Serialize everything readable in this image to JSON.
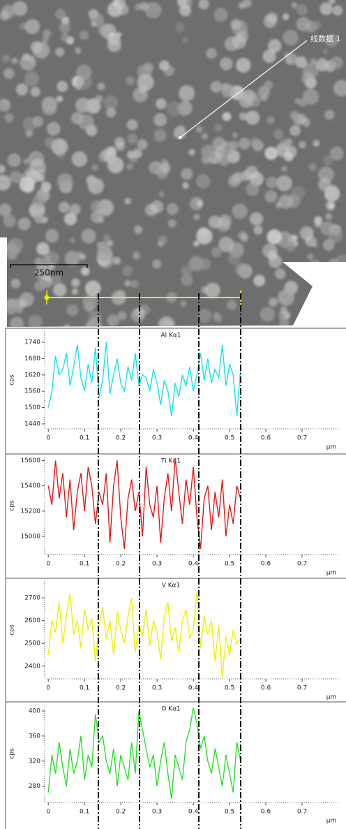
{
  "image": {
    "line_label": "线数据 1",
    "scale_bar": "250nm"
  },
  "chart_data": [
    {
      "type": "line",
      "title": "Al Kα1",
      "ylabel": "cps",
      "xlabel": "μm",
      "color": "#14e4f0",
      "x": [
        0,
        0.01,
        0.02,
        0.03,
        0.04,
        0.05,
        0.06,
        0.07,
        0.08,
        0.09,
        0.1,
        0.11,
        0.12,
        0.13,
        0.14,
        0.15,
        0.16,
        0.17,
        0.18,
        0.19,
        0.2,
        0.21,
        0.22,
        0.23,
        0.24,
        0.25,
        0.26,
        0.27,
        0.28,
        0.29,
        0.3,
        0.31,
        0.32,
        0.33,
        0.34,
        0.35,
        0.36,
        0.37,
        0.38,
        0.39,
        0.4,
        0.41,
        0.42,
        0.43,
        0.44,
        0.45,
        0.46,
        0.47,
        0.48,
        0.49,
        0.5,
        0.51,
        0.52,
        0.53
      ],
      "values": [
        1500,
        1560,
        1690,
        1620,
        1640,
        1700,
        1580,
        1650,
        1730,
        1610,
        1560,
        1660,
        1590,
        1720,
        1540,
        1600,
        1740,
        1550,
        1620,
        1680,
        1590,
        1560,
        1650,
        1600,
        1700,
        1580,
        1620,
        1610,
        1560,
        1640,
        1590,
        1510,
        1600,
        1560,
        1470,
        1590,
        1540,
        1620,
        1580,
        1650,
        1560,
        1620,
        1700,
        1600,
        1680,
        1590,
        1640,
        1610,
        1730,
        1580,
        1660,
        1620,
        1470,
        1640
      ],
      "xlim": [
        -0.01,
        0.8
      ],
      "xticks": [
        0,
        0.1,
        0.2,
        0.3,
        0.4,
        0.5,
        0.6,
        0.7
      ],
      "ylim": [
        1422,
        1781
      ],
      "yticks": [
        1440,
        1500,
        1560,
        1620,
        1680,
        1740
      ]
    },
    {
      "type": "line",
      "title": "Ti Kα1",
      "ylabel": "cps",
      "xlabel": "μm",
      "color": "#e01818",
      "x": [
        0,
        0.01,
        0.02,
        0.03,
        0.04,
        0.05,
        0.06,
        0.07,
        0.08,
        0.09,
        0.1,
        0.11,
        0.12,
        0.13,
        0.14,
        0.15,
        0.16,
        0.17,
        0.18,
        0.19,
        0.2,
        0.21,
        0.22,
        0.23,
        0.24,
        0.25,
        0.26,
        0.27,
        0.28,
        0.29,
        0.3,
        0.31,
        0.32,
        0.33,
        0.34,
        0.35,
        0.36,
        0.37,
        0.38,
        0.39,
        0.4,
        0.41,
        0.42,
        0.43,
        0.44,
        0.45,
        0.46,
        0.47,
        0.48,
        0.49,
        0.5,
        0.51,
        0.52,
        0.53
      ],
      "values": [
        15400,
        15250,
        15600,
        15300,
        15500,
        15150,
        15450,
        15050,
        15350,
        15500,
        15200,
        15550,
        15400,
        15100,
        15350,
        15250,
        15500,
        14950,
        15400,
        15600,
        15150,
        14900,
        15300,
        15450,
        15200,
        15350,
        15000,
        15550,
        15250,
        15150,
        15400,
        14950,
        15300,
        15500,
        15200,
        15620,
        15350,
        15100,
        15450,
        15250,
        15550,
        15150,
        14900,
        15300,
        15400,
        15050,
        15350,
        15150,
        15450,
        15000,
        15250,
        15100,
        15400,
        15300
      ],
      "xlim": [
        -0.01,
        0.8
      ],
      "xticks": [
        0,
        0.1,
        0.2,
        0.3,
        0.4,
        0.5,
        0.6,
        0.7
      ],
      "ylim": [
        14856,
        15630
      ],
      "yticks": [
        15000,
        15200,
        15400,
        15600
      ]
    },
    {
      "type": "line",
      "title": "V Kα1",
      "ylabel": "cps",
      "xlabel": "μm",
      "color": "#f0f000",
      "x": [
        0,
        0.01,
        0.02,
        0.03,
        0.04,
        0.05,
        0.06,
        0.07,
        0.08,
        0.09,
        0.1,
        0.11,
        0.12,
        0.13,
        0.14,
        0.15,
        0.16,
        0.17,
        0.18,
        0.19,
        0.2,
        0.21,
        0.22,
        0.23,
        0.24,
        0.25,
        0.26,
        0.27,
        0.28,
        0.29,
        0.3,
        0.31,
        0.32,
        0.33,
        0.34,
        0.35,
        0.36,
        0.37,
        0.38,
        0.39,
        0.4,
        0.41,
        0.42,
        0.43,
        0.44,
        0.45,
        0.46,
        0.47,
        0.48,
        0.49,
        0.5,
        0.51,
        0.52,
        0.53
      ],
      "values": [
        2450,
        2600,
        2550,
        2680,
        2500,
        2620,
        2720,
        2540,
        2600,
        2480,
        2650,
        2560,
        2610,
        2420,
        2580,
        2660,
        2520,
        2600,
        2450,
        2640,
        2560,
        2500,
        2620,
        2700,
        2460,
        2580,
        2530,
        2650,
        2490,
        2600,
        2550,
        2430,
        2620,
        2680,
        2510,
        2570,
        2460,
        2600,
        2650,
        2520,
        2560,
        2730,
        2480,
        2620,
        2540,
        2600,
        2420,
        2580,
        2350,
        2530,
        2450,
        2560,
        2500,
        2520
      ],
      "xlim": [
        -0.01,
        0.8
      ],
      "xticks": [
        0,
        0.1,
        0.2,
        0.3,
        0.4,
        0.5,
        0.6,
        0.7
      ],
      "ylim": [
        2344,
        2774
      ],
      "yticks": [
        2400,
        2500,
        2600,
        2700
      ]
    },
    {
      "type": "line",
      "title": "O Kα1",
      "ylabel": "cps",
      "xlabel": "μm",
      "color": "#28e028",
      "x": [
        0,
        0.01,
        0.02,
        0.03,
        0.04,
        0.05,
        0.06,
        0.07,
        0.08,
        0.09,
        0.1,
        0.11,
        0.12,
        0.13,
        0.14,
        0.15,
        0.16,
        0.17,
        0.18,
        0.19,
        0.2,
        0.21,
        0.22,
        0.23,
        0.24,
        0.25,
        0.26,
        0.27,
        0.28,
        0.29,
        0.3,
        0.31,
        0.32,
        0.33,
        0.34,
        0.35,
        0.36,
        0.37,
        0.38,
        0.39,
        0.4,
        0.41,
        0.42,
        0.43,
        0.44,
        0.45,
        0.46,
        0.47,
        0.48,
        0.49,
        0.5,
        0.51,
        0.52,
        0.53
      ],
      "values": [
        270,
        330,
        300,
        350,
        310,
        280,
        340,
        300,
        320,
        360,
        290,
        330,
        310,
        395,
        350,
        360,
        320,
        300,
        340,
        280,
        330,
        310,
        290,
        350,
        300,
        400,
        370,
        340,
        310,
        330,
        280,
        320,
        350,
        300,
        260,
        330,
        310,
        290,
        350,
        370,
        405,
        380,
        340,
        360,
        320,
        300,
        340,
        310,
        280,
        330,
        300,
        270,
        350,
        320
      ],
      "xlim": [
        -0.01,
        0.8
      ],
      "xticks": [
        0,
        0.1,
        0.2,
        0.3,
        0.4,
        0.5,
        0.6,
        0.7
      ],
      "ylim": [
        254,
        410
      ],
      "yticks": [
        280,
        320,
        360,
        400
      ]
    }
  ]
}
